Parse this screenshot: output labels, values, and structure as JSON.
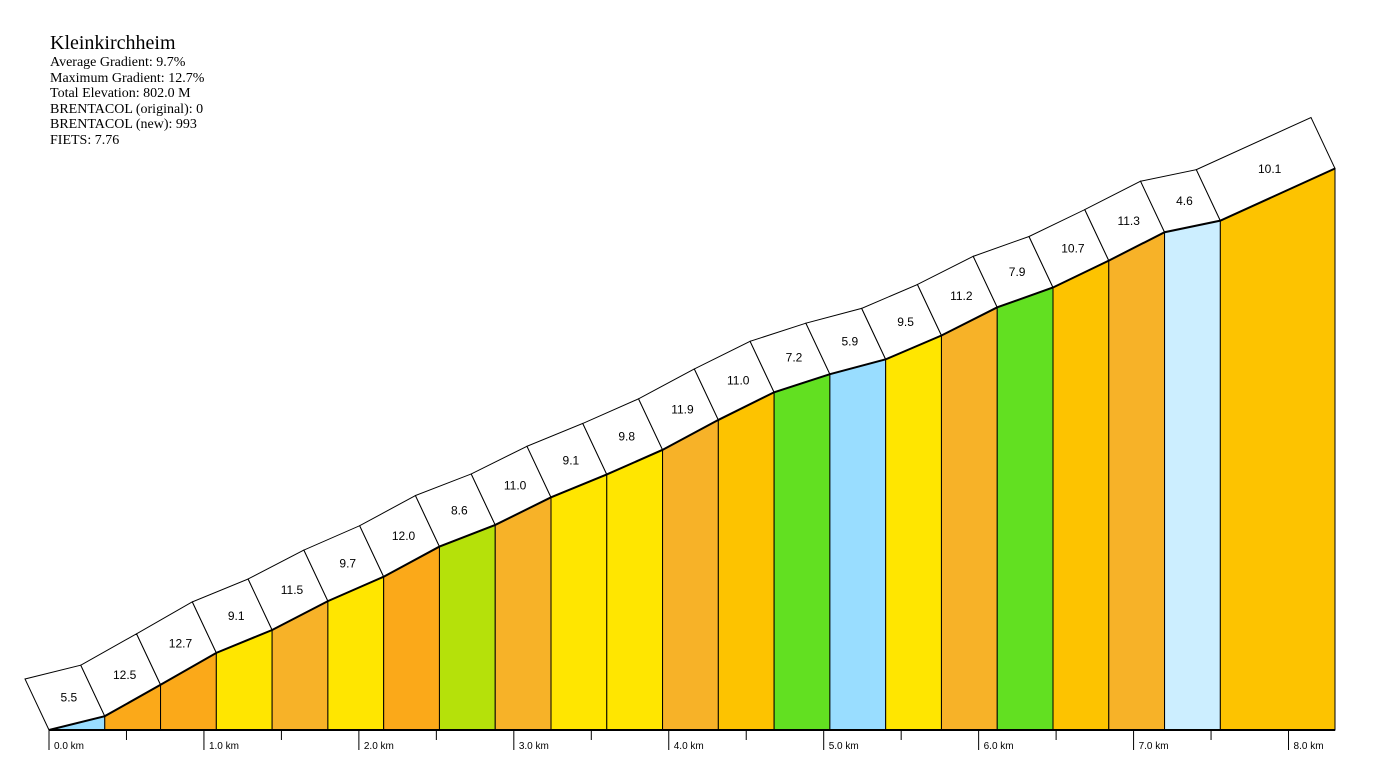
{
  "info": {
    "title": "Kleinkirchheim",
    "stats": [
      "Average Gradient: 9.7%",
      "Maximum Gradient: 12.7%",
      "Total Elevation: 802.0 M",
      "BRENTACOL (original): 0",
      "BRENTACOL (new): 993",
      "FIETS: 7.76"
    ]
  },
  "chart_data": {
    "type": "area",
    "title": "Kleinkirchheim",
    "xlabel": "",
    "ylabel": "",
    "x_unit": "km",
    "segment_length_km": 0.36,
    "total_distance_km": 8.3,
    "xlim": [
      0,
      8.3
    ],
    "segments": [
      {
        "gradient": 5.5,
        "start_km": 0.0,
        "end_km": 0.36,
        "color": "#99ddff"
      },
      {
        "gradient": 12.5,
        "start_km": 0.36,
        "end_km": 0.72,
        "color": "#fba919"
      },
      {
        "gradient": 12.7,
        "start_km": 0.72,
        "end_km": 1.08,
        "color": "#fba919"
      },
      {
        "gradient": 9.1,
        "start_km": 1.08,
        "end_km": 1.44,
        "color": "#ffe600"
      },
      {
        "gradient": 11.5,
        "start_km": 1.44,
        "end_km": 1.8,
        "color": "#f7b228"
      },
      {
        "gradient": 9.7,
        "start_km": 1.8,
        "end_km": 2.16,
        "color": "#ffe600"
      },
      {
        "gradient": 12.0,
        "start_km": 2.16,
        "end_km": 2.52,
        "color": "#fba919"
      },
      {
        "gradient": 8.6,
        "start_km": 2.52,
        "end_km": 2.88,
        "color": "#b5e10a"
      },
      {
        "gradient": 11.0,
        "start_km": 2.88,
        "end_km": 3.24,
        "color": "#f7b228"
      },
      {
        "gradient": 9.1,
        "start_km": 3.24,
        "end_km": 3.6,
        "color": "#ffe600"
      },
      {
        "gradient": 9.8,
        "start_km": 3.6,
        "end_km": 3.96,
        "color": "#ffe600"
      },
      {
        "gradient": 11.9,
        "start_km": 3.96,
        "end_km": 4.32,
        "color": "#f7b228"
      },
      {
        "gradient": 11.0,
        "start_km": 4.32,
        "end_km": 4.68,
        "color": "#fdc300"
      },
      {
        "gradient": 7.2,
        "start_km": 4.68,
        "end_km": 5.04,
        "color": "#62e021"
      },
      {
        "gradient": 5.9,
        "start_km": 5.04,
        "end_km": 5.4,
        "color": "#99ddff"
      },
      {
        "gradient": 9.5,
        "start_km": 5.4,
        "end_km": 5.76,
        "color": "#ffe600"
      },
      {
        "gradient": 11.2,
        "start_km": 5.76,
        "end_km": 6.12,
        "color": "#f7b228"
      },
      {
        "gradient": 7.9,
        "start_km": 6.12,
        "end_km": 6.48,
        "color": "#62e021"
      },
      {
        "gradient": 10.7,
        "start_km": 6.48,
        "end_km": 6.84,
        "color": "#fdc300"
      },
      {
        "gradient": 11.3,
        "start_km": 6.84,
        "end_km": 7.2,
        "color": "#f7b228"
      },
      {
        "gradient": 4.6,
        "start_km": 7.2,
        "end_km": 7.56,
        "color": "#cceeff"
      },
      {
        "gradient": 10.1,
        "start_km": 7.56,
        "end_km": 8.3,
        "color": "#fdc300"
      }
    ],
    "x_ticks": [
      "0.0 km",
      "1.0 km",
      "2.0 km",
      "3.0 km",
      "4.0 km",
      "5.0 km",
      "6.0 km",
      "7.0 km",
      "8.0 km"
    ],
    "legend": false,
    "grid": false
  }
}
